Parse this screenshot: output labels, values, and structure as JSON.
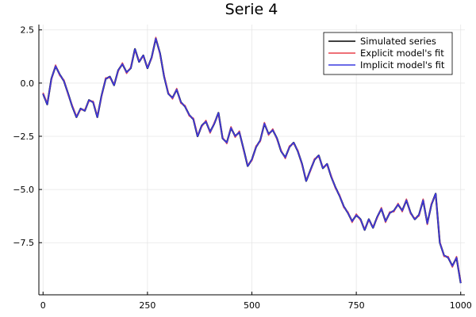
{
  "chart_data": {
    "type": "line",
    "title": "Serie 4",
    "xlabel": "",
    "ylabel": "",
    "xlim": [
      -10,
      1010
    ],
    "ylim": [
      -9.95,
      2.75
    ],
    "xticks": [
      0,
      250,
      500,
      750,
      1000
    ],
    "xtick_labels": [
      "0",
      "250",
      "500",
      "750",
      "1000"
    ],
    "yticks": [
      2.5,
      0.0,
      -2.5,
      -5.0,
      -7.5
    ],
    "ytick_labels": [
      "2.5",
      "0.0",
      "−2.5",
      "−5.0",
      "−7.5"
    ],
    "grid": true,
    "legend": {
      "placement": "top-right"
    },
    "x": [
      0,
      10,
      20,
      30,
      40,
      50,
      60,
      70,
      80,
      90,
      100,
      110,
      120,
      130,
      140,
      150,
      160,
      170,
      180,
      190,
      200,
      210,
      220,
      230,
      240,
      250,
      260,
      270,
      280,
      290,
      300,
      310,
      320,
      330,
      340,
      350,
      360,
      370,
      380,
      390,
      400,
      410,
      420,
      430,
      440,
      450,
      460,
      470,
      480,
      490,
      500,
      510,
      520,
      530,
      540,
      550,
      560,
      570,
      580,
      590,
      600,
      610,
      620,
      630,
      640,
      650,
      660,
      670,
      680,
      690,
      700,
      710,
      720,
      730,
      740,
      750,
      760,
      770,
      780,
      790,
      800,
      810,
      820,
      830,
      840,
      850,
      860,
      870,
      880,
      890,
      900,
      910,
      920,
      930,
      940,
      950,
      960,
      970,
      980,
      990,
      1000
    ],
    "series": [
      {
        "name": "Simulated series",
        "color": "#000000",
        "values": [
          -0.5,
          -1.0,
          0.2,
          0.8,
          0.4,
          0.1,
          -0.5,
          -1.1,
          -1.6,
          -1.2,
          -1.3,
          -0.8,
          -0.9,
          -1.6,
          -0.6,
          0.2,
          0.3,
          -0.1,
          0.6,
          0.9,
          0.5,
          0.7,
          1.6,
          1.0,
          1.3,
          0.7,
          1.2,
          2.1,
          1.4,
          0.3,
          -0.5,
          -0.7,
          -0.3,
          -0.9,
          -1.1,
          -1.5,
          -1.7,
          -2.5,
          -2.0,
          -1.8,
          -2.3,
          -1.9,
          -1.4,
          -2.6,
          -2.8,
          -2.1,
          -2.5,
          -2.3,
          -3.1,
          -3.9,
          -3.6,
          -3.0,
          -2.7,
          -1.9,
          -2.4,
          -2.2,
          -2.6,
          -3.2,
          -3.5,
          -3.0,
          -2.8,
          -3.2,
          -3.8,
          -4.6,
          -4.1,
          -3.6,
          -3.4,
          -4.0,
          -3.8,
          -4.4,
          -4.9,
          -5.3,
          -5.8,
          -6.1,
          -6.5,
          -6.2,
          -6.4,
          -6.9,
          -6.4,
          -6.8,
          -6.3,
          -5.9,
          -6.5,
          -6.1,
          -6.0,
          -5.7,
          -6.0,
          -5.5,
          -6.1,
          -6.4,
          -6.2,
          -5.5,
          -6.6,
          -5.7,
          -5.2,
          -7.5,
          -8.1,
          -8.2,
          -8.6,
          -8.2,
          -9.4
        ]
      },
      {
        "name": "Explicit model's fit",
        "color": "#e8414a",
        "values": [
          -0.45,
          -0.95,
          0.15,
          0.85,
          0.35,
          0.15,
          -0.55,
          -1.05,
          -1.55,
          -1.25,
          -1.25,
          -0.85,
          -0.85,
          -1.55,
          -0.65,
          0.25,
          0.25,
          -0.05,
          0.55,
          0.95,
          0.45,
          0.75,
          1.55,
          1.05,
          1.25,
          0.75,
          1.15,
          2.15,
          1.35,
          0.35,
          -0.45,
          -0.75,
          -0.25,
          -0.95,
          -1.05,
          -1.55,
          -1.65,
          -2.45,
          -2.05,
          -1.75,
          -2.35,
          -1.85,
          -1.45,
          -2.55,
          -2.85,
          -2.05,
          -2.55,
          -2.25,
          -3.15,
          -3.85,
          -3.65,
          -2.95,
          -2.75,
          -1.85,
          -2.45,
          -2.15,
          -2.65,
          -3.15,
          -3.55,
          -2.95,
          -2.85,
          -3.15,
          -3.85,
          -4.55,
          -4.15,
          -3.55,
          -3.45,
          -3.95,
          -3.85,
          -4.35,
          -4.95,
          -5.25,
          -5.85,
          -6.05,
          -6.55,
          -6.15,
          -6.45,
          -6.85,
          -6.45,
          -6.75,
          -6.35,
          -5.85,
          -6.55,
          -6.05,
          -6.05,
          -5.65,
          -6.05,
          -5.45,
          -6.15,
          -6.35,
          -6.25,
          -5.45,
          -6.65,
          -5.65,
          -5.25,
          -7.45,
          -8.15,
          -8.15,
          -8.65,
          -8.15,
          -9.35
        ]
      },
      {
        "name": "Implicit model's fit",
        "color": "#3a3ae0",
        "values": [
          -0.5,
          -1.0,
          0.2,
          0.8,
          0.4,
          0.1,
          -0.5,
          -1.1,
          -1.6,
          -1.2,
          -1.3,
          -0.8,
          -0.9,
          -1.6,
          -0.6,
          0.2,
          0.3,
          -0.1,
          0.6,
          0.9,
          0.5,
          0.7,
          1.6,
          1.0,
          1.3,
          0.7,
          1.2,
          2.1,
          1.4,
          0.3,
          -0.5,
          -0.7,
          -0.3,
          -0.9,
          -1.1,
          -1.5,
          -1.7,
          -2.5,
          -2.0,
          -1.8,
          -2.3,
          -1.9,
          -1.4,
          -2.6,
          -2.8,
          -2.1,
          -2.5,
          -2.3,
          -3.1,
          -3.9,
          -3.6,
          -3.0,
          -2.7,
          -1.9,
          -2.4,
          -2.2,
          -2.6,
          -3.2,
          -3.5,
          -3.0,
          -2.8,
          -3.2,
          -3.8,
          -4.6,
          -4.1,
          -3.6,
          -3.4,
          -4.0,
          -3.8,
          -4.4,
          -4.9,
          -5.3,
          -5.8,
          -6.1,
          -6.5,
          -6.2,
          -6.4,
          -6.9,
          -6.4,
          -6.8,
          -6.3,
          -5.9,
          -6.5,
          -6.1,
          -6.0,
          -5.7,
          -6.0,
          -5.5,
          -6.1,
          -6.4,
          -6.2,
          -5.5,
          -6.6,
          -5.7,
          -5.2,
          -7.5,
          -8.1,
          -8.2,
          -8.6,
          -8.2,
          -9.4
        ]
      }
    ]
  }
}
